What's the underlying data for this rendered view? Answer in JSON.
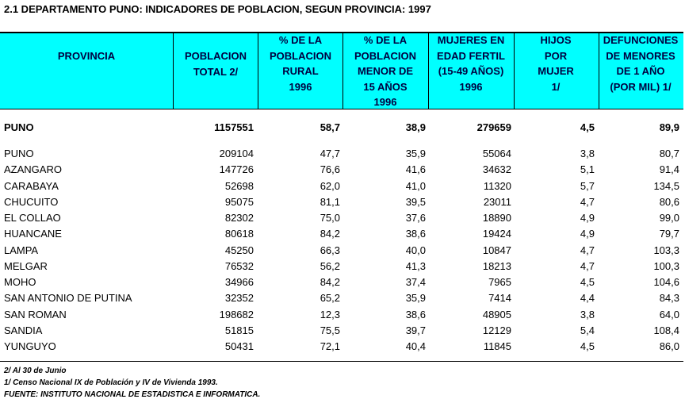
{
  "title": "2.1 DEPARTAMENTO PUNO:  INDICADORES DE POBLACION, SEGUN PROVINCIA: 1997",
  "header": {
    "columns": [
      [
        "PROVINCIA"
      ],
      [
        "POBLACION",
        "TOTAL 2/"
      ],
      [
        "% DE LA",
        "POBLACION",
        "RURAL",
        "1996"
      ],
      [
        "% DE LA",
        "POBLACION",
        "MENOR DE",
        "15 AÑOS",
        "1996"
      ],
      [
        "MUJERES EN",
        "EDAD FERTIL",
        "(15-49 AÑOS)",
        "1996"
      ],
      [
        "HIJOS",
        "POR",
        "MUJER",
        "1/"
      ],
      [
        "DEFUNCIONES",
        "DE MENORES",
        "DE 1 AÑO",
        "(POR MIL) 1/"
      ]
    ]
  },
  "total": [
    "PUNO",
    "1157551",
    "58,7",
    "38,9",
    "279659",
    "4,5",
    "89,9"
  ],
  "rows": [
    [
      "PUNO",
      "209104",
      "47,7",
      "35,9",
      "55064",
      "3,8",
      "80,7"
    ],
    [
      "AZANGARO",
      "147726",
      "76,6",
      "41,6",
      "34632",
      "5,1",
      "91,4"
    ],
    [
      "CARABAYA",
      "52698",
      "62,0",
      "41,0",
      "11320",
      "5,7",
      "134,5"
    ],
    [
      "CHUCUITO",
      "95075",
      "81,1",
      "39,5",
      "23011",
      "4,7",
      "80,6"
    ],
    [
      "EL COLLAO",
      "82302",
      "75,0",
      "37,6",
      "18890",
      "4,9",
      "99,0"
    ],
    [
      "HUANCANE",
      "80618",
      "84,2",
      "38,6",
      "19424",
      "4,9",
      "79,7"
    ],
    [
      "LAMPA",
      "45250",
      "66,3",
      "40,0",
      "10847",
      "4,7",
      "103,3"
    ],
    [
      "MELGAR",
      "76532",
      "56,2",
      "41,3",
      "18213",
      "4,7",
      "100,3"
    ],
    [
      "MOHO",
      "34966",
      "84,2",
      "37,4",
      "7965",
      "4,5",
      "104,6"
    ],
    [
      "SAN ANTONIO DE PUTINA",
      "32352",
      "65,2",
      "35,9",
      "7414",
      "4,4",
      "84,3"
    ],
    [
      "SAN ROMAN",
      "198682",
      "12,3",
      "38,6",
      "48905",
      "3,8",
      "64,0"
    ],
    [
      "SANDIA",
      "51815",
      "75,5",
      "39,7",
      "12129",
      "5,4",
      "108,4"
    ],
    [
      "YUNGUYO",
      "50431",
      "72,1",
      "40,4",
      "11845",
      "4,5",
      "86,0"
    ]
  ],
  "footnotes": [
    "2/  Al 30 de Junio",
    "1/ Censo Nacional IX de Población y IV de Vivienda 1993.",
    "FUENTE: INSTITUTO NACIONAL DE ESTADISTICA E INFORMATICA."
  ]
}
